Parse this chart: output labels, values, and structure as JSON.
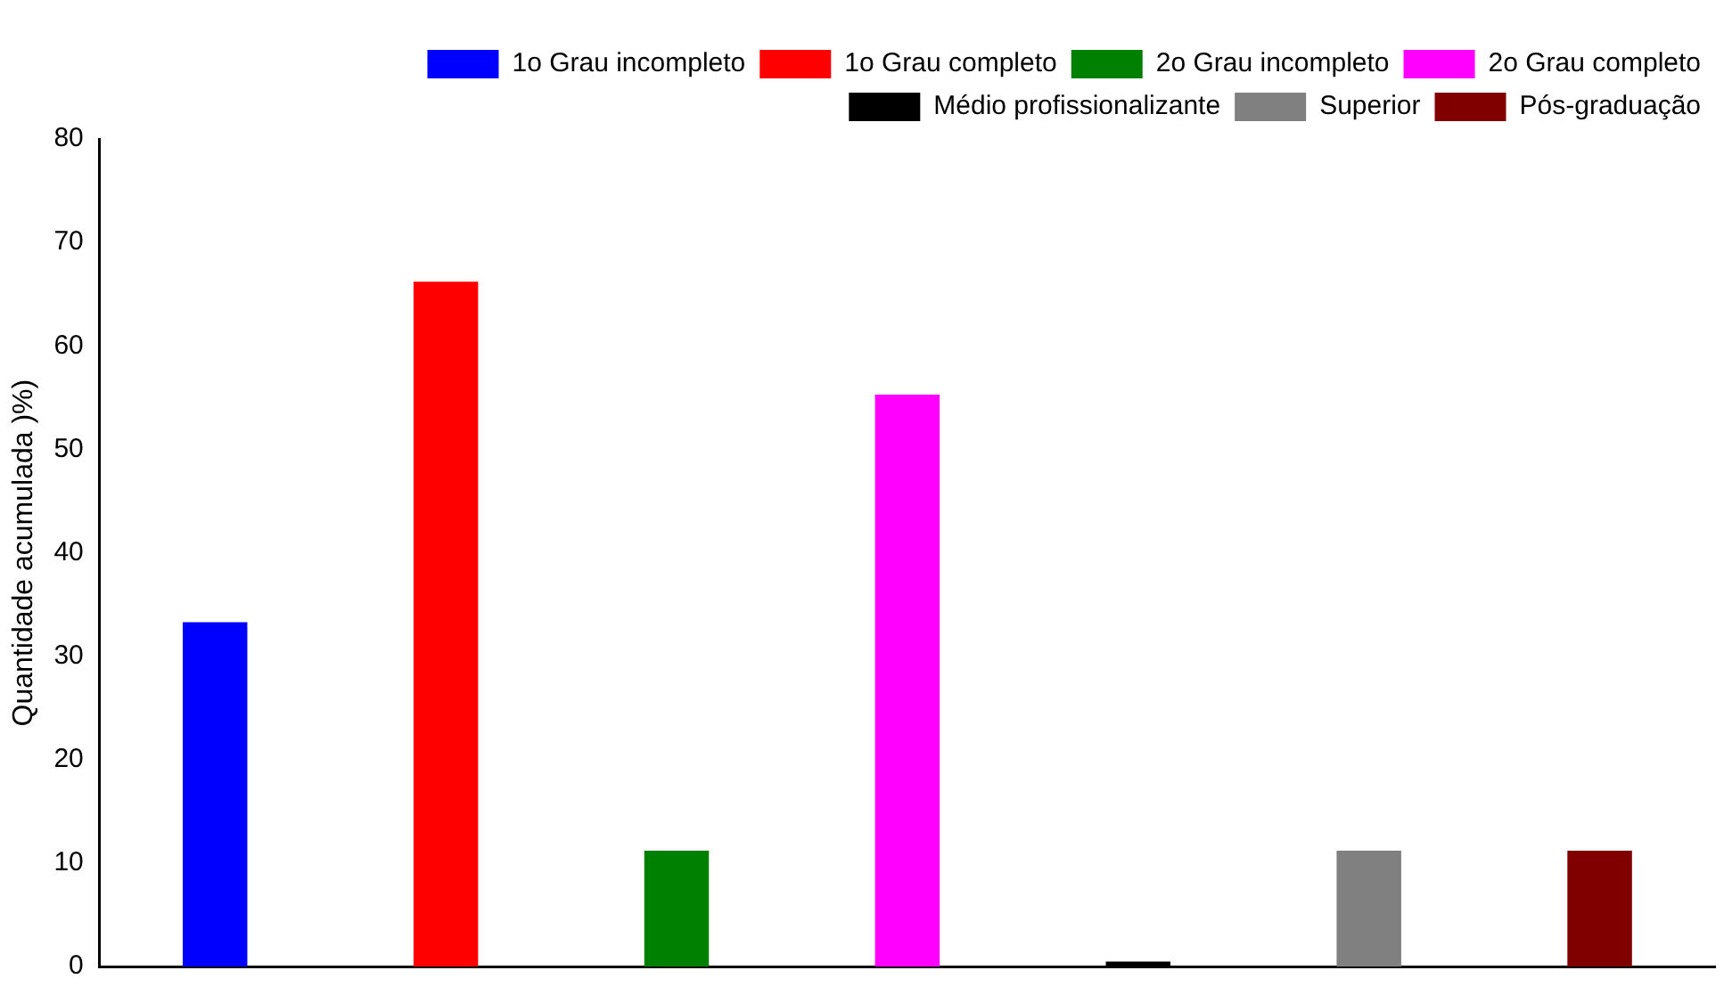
{
  "chart_data": {
    "type": "bar",
    "ylabel": "Quantidade acumulada )%)",
    "categories": [
      null,
      null,
      null,
      null,
      null,
      null,
      null
    ],
    "series": [
      {
        "name": "1o Grau incompleto",
        "color": "#0000ff",
        "values": [
          33.3,
          null,
          null,
          null,
          null,
          null,
          null
        ]
      },
      {
        "name": "1o Grau completo",
        "color": "#ff0000",
        "values": [
          null,
          66.2,
          null,
          null,
          null,
          null,
          null
        ]
      },
      {
        "name": "2o Grau incompleto",
        "color": "#008000",
        "values": [
          null,
          null,
          11.2,
          null,
          null,
          null,
          null
        ]
      },
      {
        "name": "2o Grau completo",
        "color": "#ff00ff",
        "values": [
          null,
          null,
          null,
          55.3,
          null,
          null,
          null
        ]
      },
      {
        "name": "Médio profissionalizante",
        "color": "#000000",
        "values": [
          null,
          null,
          null,
          null,
          0.5,
          null,
          null
        ]
      },
      {
        "name": "Superior",
        "color": "#808080",
        "values": [
          null,
          null,
          null,
          null,
          null,
          11.2,
          null
        ]
      },
      {
        "name": "Pós-graduação",
        "color": "#800000",
        "values": [
          null,
          null,
          null,
          null,
          null,
          null,
          11.2
        ]
      }
    ],
    "ylim": [
      0,
      80
    ],
    "yticks": [
      0,
      10,
      20,
      30,
      40,
      50,
      60,
      70,
      80
    ],
    "grid": false,
    "legend": "top right"
  }
}
